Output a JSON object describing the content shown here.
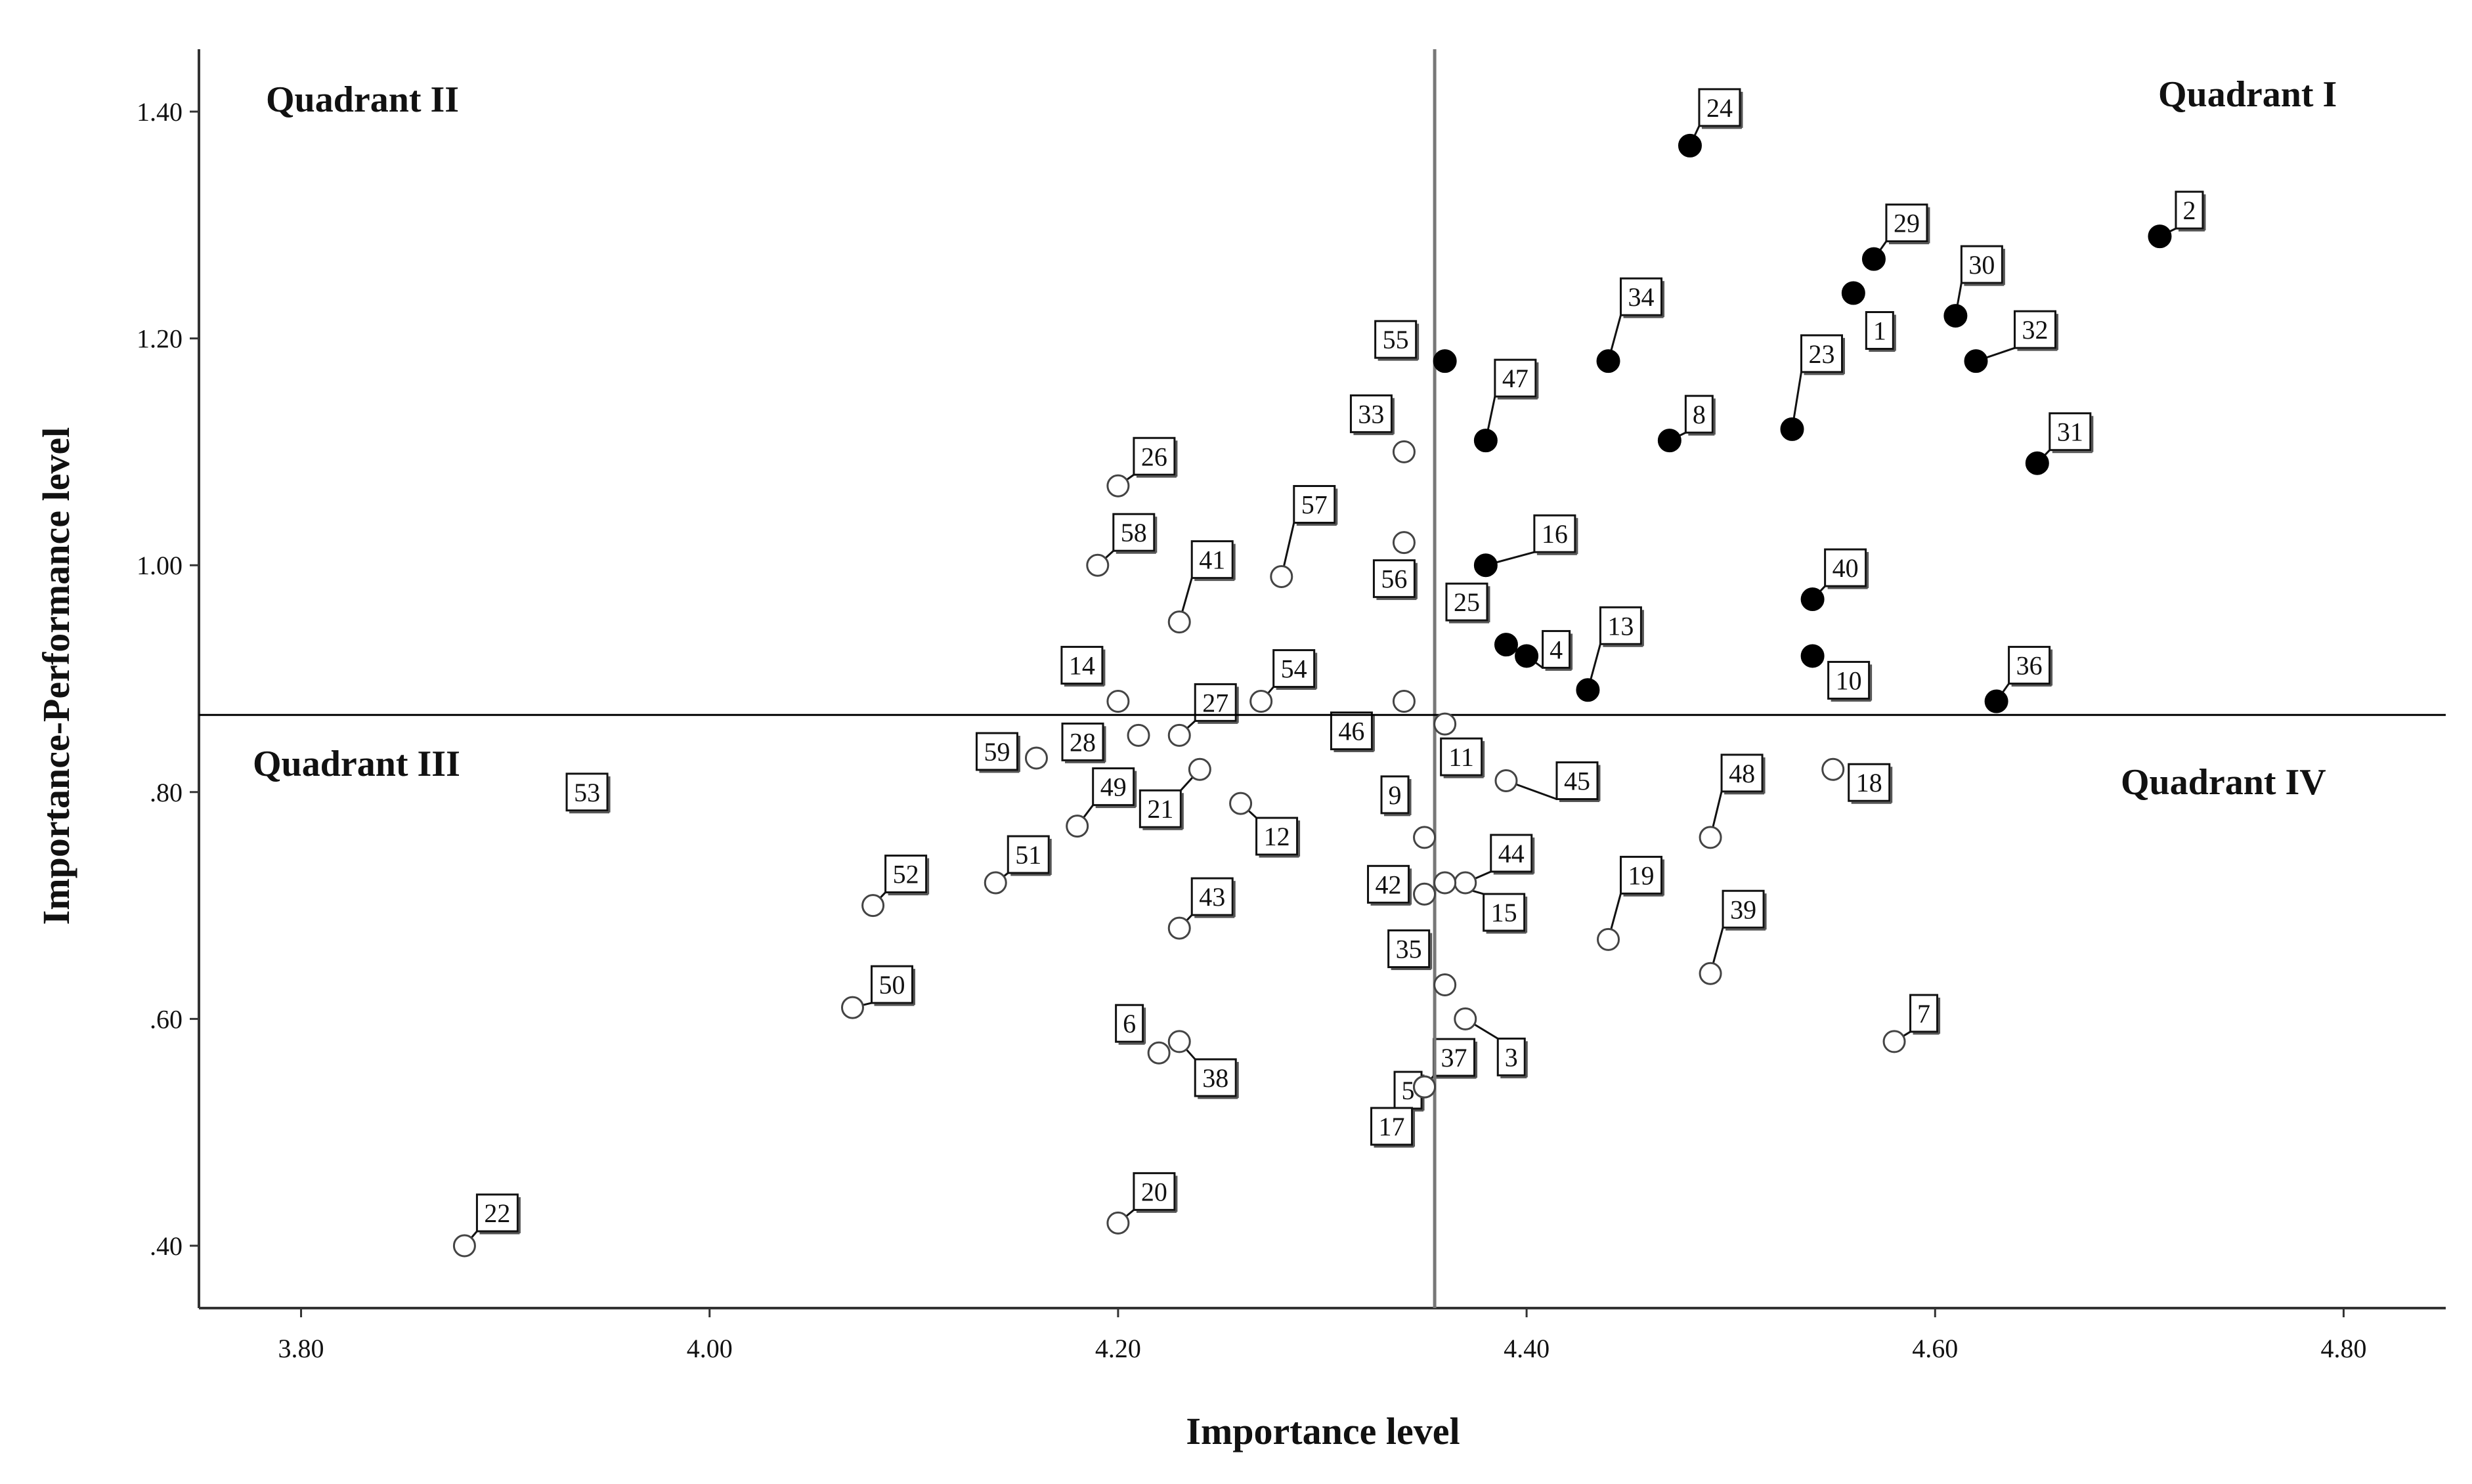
{
  "chart_data": {
    "type": "scatter",
    "title": "",
    "xlabel": "Importance level",
    "ylabel": "Importance-Performance level",
    "xlim": [
      3.75,
      4.85
    ],
    "ylim": [
      0.345,
      1.455
    ],
    "xticks": [
      3.8,
      4.0,
      4.2,
      4.4,
      4.6,
      4.8
    ],
    "xtick_labels": [
      "3.80",
      "4.00",
      "4.20",
      "4.40",
      "4.60",
      "4.80"
    ],
    "yticks": [
      0.4,
      0.6,
      0.8,
      1.0,
      1.2,
      1.4
    ],
    "ytick_labels": [
      ".40",
      ".60",
      ".80",
      "1.00",
      "1.20",
      "1.40"
    ],
    "grid": false,
    "reference_lines": {
      "x": 4.355,
      "y": 0.868
    },
    "quadrant_labels": [
      "Quadrant I",
      "Quadrant II",
      "Quadrant III",
      "Quadrant IV"
    ],
    "colors": {
      "filled_marker": "#000000",
      "hollow_marker": "#ffffff",
      "marker_edge": "#444444",
      "axis": "#333333",
      "reference_line_vertical": "#777777",
      "reference_line_horizontal": "#000000"
    },
    "series": [
      {
        "marker": "filled",
        "points": [
          {
            "label": "24",
            "x": 4.48,
            "y": 1.37
          },
          {
            "label": "2",
            "x": 4.71,
            "y": 1.29
          },
          {
            "label": "29",
            "x": 4.57,
            "y": 1.27
          },
          {
            "label": "1",
            "x": 4.56,
            "y": 1.24
          },
          {
            "label": "30",
            "x": 4.61,
            "y": 1.22
          },
          {
            "label": "34",
            "x": 4.44,
            "y": 1.18
          },
          {
            "label": "32",
            "x": 4.62,
            "y": 1.18
          },
          {
            "label": "55",
            "x": 4.36,
            "y": 1.18
          },
          {
            "label": "47",
            "x": 4.38,
            "y": 1.11
          },
          {
            "label": "8",
            "x": 4.47,
            "y": 1.11
          },
          {
            "label": "23",
            "x": 4.53,
            "y": 1.12
          },
          {
            "label": "31",
            "x": 4.65,
            "y": 1.09
          },
          {
            "label": "16",
            "x": 4.38,
            "y": 1.0
          },
          {
            "label": "40",
            "x": 4.54,
            "y": 0.97
          },
          {
            "label": "25",
            "x": 4.39,
            "y": 0.93
          },
          {
            "label": "4",
            "x": 4.4,
            "y": 0.92
          },
          {
            "label": "13",
            "x": 4.43,
            "y": 0.89
          },
          {
            "label": "10",
            "x": 4.54,
            "y": 0.92
          },
          {
            "label": "36",
            "x": 4.63,
            "y": 0.88
          }
        ]
      },
      {
        "marker": "hollow",
        "points": [
          {
            "label": "26",
            "x": 4.2,
            "y": 1.07
          },
          {
            "label": "33",
            "x": 4.34,
            "y": 1.1
          },
          {
            "label": "58",
            "x": 4.19,
            "y": 1.0
          },
          {
            "label": "57",
            "x": 4.28,
            "y": 0.99
          },
          {
            "label": "56",
            "x": 4.34,
            "y": 1.02
          },
          {
            "label": "41",
            "x": 4.23,
            "y": 0.95
          },
          {
            "label": "14",
            "x": 4.2,
            "y": 0.88
          },
          {
            "label": "54",
            "x": 4.27,
            "y": 0.88
          },
          {
            "label": "46",
            "x": 4.34,
            "y": 0.88
          },
          {
            "label": "27",
            "x": 4.23,
            "y": 0.85
          },
          {
            "label": "28",
            "x": 4.21,
            "y": 0.85
          },
          {
            "label": "59",
            "x": 4.16,
            "y": 0.83
          },
          {
            "label": "11",
            "x": 4.36,
            "y": 0.86
          },
          {
            "label": "45",
            "x": 4.39,
            "y": 0.81
          },
          {
            "label": "49",
            "x": 4.18,
            "y": 0.77
          },
          {
            "label": "21",
            "x": 4.24,
            "y": 0.82
          },
          {
            "label": "12",
            "x": 4.26,
            "y": 0.79
          },
          {
            "label": "9",
            "x": 4.35,
            "y": 0.76
          },
          {
            "label": "48",
            "x": 4.49,
            "y": 0.76
          },
          {
            "label": "18",
            "x": 4.55,
            "y": 0.82
          },
          {
            "label": "51",
            "x": 4.14,
            "y": 0.72
          },
          {
            "label": "52",
            "x": 4.08,
            "y": 0.7
          },
          {
            "label": "42",
            "x": 4.35,
            "y": 0.71
          },
          {
            "label": "44",
            "x": 4.37,
            "y": 0.72
          },
          {
            "label": "15",
            "x": 4.36,
            "y": 0.72
          },
          {
            "label": "43",
            "x": 4.23,
            "y": 0.68
          },
          {
            "label": "19",
            "x": 4.44,
            "y": 0.67
          },
          {
            "label": "39",
            "x": 4.49,
            "y": 0.64
          },
          {
            "label": "35",
            "x": 4.36,
            "y": 0.63
          },
          {
            "label": "50",
            "x": 4.07,
            "y": 0.61
          },
          {
            "label": "6",
            "x": 4.22,
            "y": 0.57
          },
          {
            "label": "38",
            "x": 4.23,
            "y": 0.58
          },
          {
            "label": "5",
            "x": 4.35,
            "y": 0.54
          },
          {
            "label": "3",
            "x": 4.37,
            "y": 0.6
          },
          {
            "label": "37",
            "x": 4.35,
            "y": 0.54
          },
          {
            "label": "17",
            "x": 4.35,
            "y": 0.54
          },
          {
            "label": "7",
            "x": 4.58,
            "y": 0.58
          },
          {
            "label": "20",
            "x": 4.2,
            "y": 0.42
          },
          {
            "label": "22",
            "x": 3.88,
            "y": 0.4
          }
        ]
      },
      {
        "marker": "none",
        "points": [
          {
            "label": "53",
            "x": 3.94,
            "y": 0.8
          }
        ]
      }
    ]
  }
}
